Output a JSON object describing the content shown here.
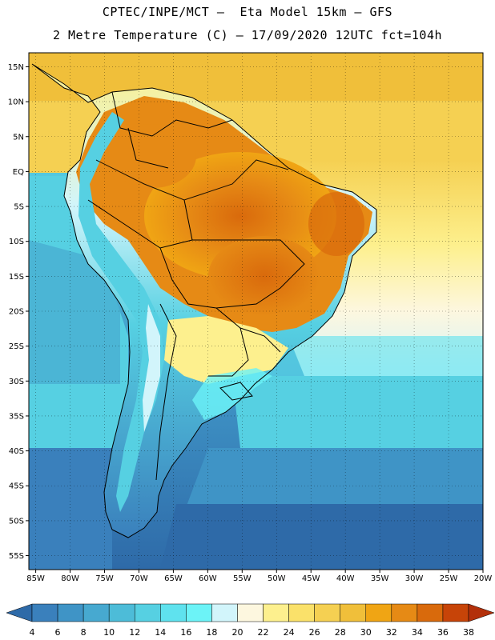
{
  "title": {
    "line1": "CPTEC/INPE/MCT –  Eta Model 15km – GFS",
    "line2": "2 Metre Temperature (C) – 17/09/2020 12UTC fct=104h"
  },
  "map": {
    "variable": "2 Metre Temperature",
    "units": "C",
    "lat_range": [
      -57,
      17
    ],
    "lon_range": [
      -86,
      -20
    ],
    "lat_ticks": [
      "15N",
      "10N",
      "5N",
      "EQ",
      "5S",
      "10S",
      "15S",
      "20S",
      "25S",
      "30S",
      "35S",
      "40S",
      "45S",
      "50S",
      "55S"
    ],
    "lon_ticks": [
      "85W",
      "80W",
      "75W",
      "70W",
      "65W",
      "60W",
      "55W",
      "50W",
      "45W",
      "40W",
      "35W",
      "30W",
      "25W",
      "20W"
    ]
  },
  "colorbar": {
    "labels": [
      "4",
      "6",
      "8",
      "10",
      "12",
      "14",
      "16",
      "18",
      "20",
      "22",
      "24",
      "26",
      "28",
      "30",
      "32",
      "34",
      "36",
      "38"
    ],
    "colors": [
      "#2e6aa8",
      "#3a80bc",
      "#3f94c6",
      "#47a9d0",
      "#4dbcd8",
      "#56d0e2",
      "#5fe2ee",
      "#6cf3f7",
      "#d2f5fb",
      "#fdf7df",
      "#fdf08e",
      "#fae16a",
      "#f5d052",
      "#f0bf3a",
      "#f0a514",
      "#e68a15",
      "#d96a0c",
      "#c74408",
      "#b3300a"
    ]
  }
}
